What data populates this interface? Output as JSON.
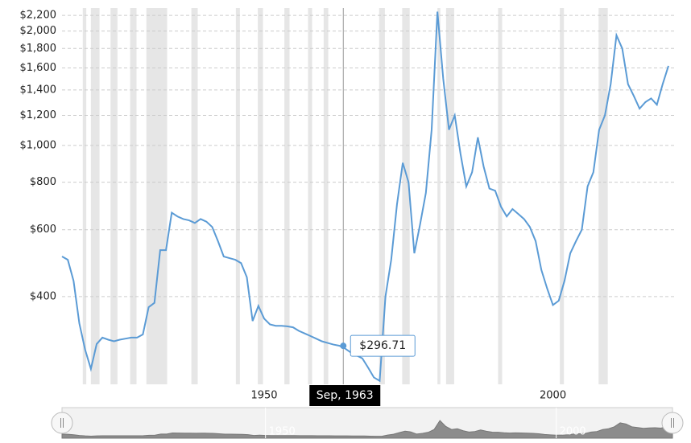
{
  "chart_data": {
    "type": "line",
    "log_y": true,
    "grid": true,
    "xlim": [
      1915,
      2020
    ],
    "xticks": [
      1950,
      2000
    ],
    "ylim": [
      235,
      2300
    ],
    "yticks": [
      {
        "value": 400,
        "label": "$400"
      },
      {
        "value": 600,
        "label": "$600"
      },
      {
        "value": 800,
        "label": "$800"
      },
      {
        "value": 1000,
        "label": "$1,000"
      },
      {
        "value": 1200,
        "label": "$1,200"
      },
      {
        "value": 1400,
        "label": "$1,400"
      },
      {
        "value": 1600,
        "label": "$1,600"
      },
      {
        "value": 1800,
        "label": "$1,800"
      },
      {
        "value": 2000,
        "label": "$2,000"
      },
      {
        "value": 2200,
        "label": "$2,200"
      }
    ],
    "recessions": [
      [
        1918.6,
        1919.2
      ],
      [
        1920.0,
        1921.5
      ],
      [
        1923.4,
        1924.6
      ],
      [
        1926.8,
        1927.9
      ],
      [
        1929.6,
        1933.2
      ],
      [
        1937.4,
        1938.5
      ],
      [
        1945.1,
        1945.8
      ],
      [
        1948.9,
        1949.8
      ],
      [
        1953.5,
        1954.4
      ],
      [
        1957.6,
        1958.3
      ],
      [
        1960.3,
        1961.1
      ],
      [
        1969.9,
        1970.9
      ],
      [
        1973.9,
        1975.2
      ],
      [
        1980.0,
        1980.5
      ],
      [
        1981.5,
        1982.9
      ],
      [
        1990.5,
        1991.2
      ],
      [
        2001.2,
        2001.9
      ],
      [
        2007.9,
        2009.5
      ]
    ],
    "recession_color": "#e6e6e6",
    "series": [
      {
        "color": "#5b9bd5",
        "x": [
          1915,
          1916,
          1917,
          1918,
          1919,
          1920,
          1921,
          1922,
          1923,
          1924,
          1925,
          1926,
          1927,
          1928,
          1929,
          1930,
          1931,
          1932,
          1933,
          1934,
          1935,
          1936,
          1937,
          1938,
          1939,
          1940,
          1941,
          1942,
          1943,
          1944,
          1945,
          1946,
          1947,
          1948,
          1949,
          1950,
          1951,
          1952,
          1953,
          1954,
          1955,
          1956,
          1957,
          1958,
          1959,
          1960,
          1961,
          1962,
          1963,
          1964,
          1965,
          1966,
          1967,
          1968,
          1969,
          1970,
          1971,
          1972,
          1973,
          1974,
          1975,
          1976,
          1977,
          1978,
          1979,
          1980,
          1981,
          1982,
          1983,
          1984,
          1985,
          1986,
          1987,
          1988,
          1989,
          1990,
          1991,
          1992,
          1993,
          1994,
          1995,
          1996,
          1997,
          1998,
          1999,
          2000,
          2001,
          2002,
          2003,
          2004,
          2005,
          2006,
          2007,
          2008,
          2009,
          2010,
          2011,
          2012,
          2013,
          2014,
          2015,
          2016,
          2017,
          2018,
          2019,
          2020
        ],
        "values": [
          510,
          500,
          440,
          340,
          290,
          258,
          300,
          312,
          308,
          305,
          308,
          310,
          312,
          312,
          318,
          375,
          385,
          530,
          530,
          665,
          650,
          640,
          635,
          625,
          640,
          630,
          610,
          560,
          510,
          505,
          500,
          490,
          450,
          345,
          378,
          350,
          338,
          335,
          335,
          334,
          332,
          325,
          320,
          315,
          310,
          305,
          302,
          299,
          297,
          292,
          285,
          280,
          275,
          260,
          245,
          240,
          400,
          500,
          700,
          900,
          800,
          520,
          620,
          750,
          1100,
          2250,
          1500,
          1100,
          1200,
          950,
          780,
          850,
          1050,
          880,
          770,
          760,
          690,
          650,
          680,
          660,
          640,
          610,
          560,
          470,
          420,
          380,
          390,
          440,
          520,
          560,
          600,
          780,
          850,
          1100,
          1200,
          1450,
          1950,
          1800,
          1450,
          1350,
          1250,
          1300,
          1330,
          1280,
          1450,
          1620
        ]
      }
    ],
    "tooltip": {
      "x": 1963.7,
      "date": "Sep, 1963",
      "value": 296.71,
      "value_label": "$296.71"
    }
  }
}
